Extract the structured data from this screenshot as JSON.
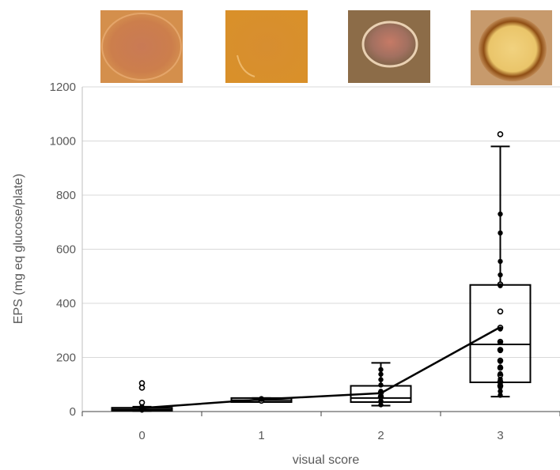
{
  "chart_data": {
    "type": "box",
    "title": "",
    "xlabel": "visual score",
    "ylabel": "EPS (mg eq glucose/plate)",
    "categories": [
      "0",
      "1",
      "2",
      "3"
    ],
    "ylim": [
      0,
      1200
    ],
    "yticks": [
      0,
      200,
      400,
      600,
      800,
      1000,
      1200
    ],
    "grid": true,
    "legend": "none",
    "boxes": [
      {
        "category": "0",
        "whisker_low": 2,
        "q1": 3,
        "median": 8,
        "q3": 14,
        "whisker_high": 18
      },
      {
        "category": "1",
        "whisker_low": 35,
        "q1": 35,
        "median": 42,
        "q3": 50,
        "whisker_high": 50
      },
      {
        "category": "2",
        "whisker_low": 22,
        "q1": 35,
        "median": 50,
        "q3": 95,
        "whisker_high": 180
      },
      {
        "category": "3",
        "whisker_low": 55,
        "q1": 108,
        "median": 248,
        "q3": 468,
        "whisker_high": 980
      }
    ],
    "mean_line": [
      13,
      45,
      68,
      312
    ],
    "points": [
      {
        "category": "0",
        "filled": [
          18,
          5
        ],
        "open": [
          105,
          88,
          33,
          10
        ]
      },
      {
        "category": "1",
        "filled": [
          48,
          45
        ],
        "open": [
          40
        ]
      },
      {
        "category": "2",
        "filled": [
          155,
          138,
          118,
          98,
          75,
          58,
          40,
          25
        ],
        "open": [
          55,
          70
        ]
      },
      {
        "category": "3",
        "filled": [
          730,
          660,
          555,
          505,
          465,
          305,
          255,
          225,
          185,
          165,
          140,
          120,
          105,
          90,
          75,
          60
        ],
        "open": [
          1025,
          470,
          370,
          310,
          258,
          228,
          188,
          162,
          135,
          110,
          95
        ]
      }
    ],
    "thumbnail_colors": [
      "#c8774a",
      "#d58a2e",
      "#8a6a44",
      "#b06d3b"
    ]
  }
}
